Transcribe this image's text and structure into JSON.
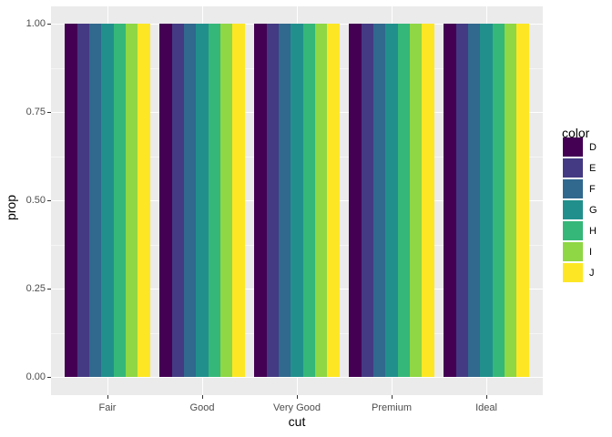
{
  "chart_data": {
    "type": "bar",
    "title": "",
    "xlabel": "cut",
    "ylabel": "prop",
    "categories": [
      "Fair",
      "Good",
      "Very Good",
      "Premium",
      "Ideal"
    ],
    "legend": {
      "title": "color",
      "position": "right",
      "entries": [
        "D",
        "E",
        "F",
        "G",
        "H",
        "I",
        "J"
      ]
    },
    "series": [
      {
        "name": "D",
        "color": "#440154",
        "values": [
          1,
          1,
          1,
          1,
          1
        ]
      },
      {
        "name": "E",
        "color": "#443A83",
        "values": [
          1,
          1,
          1,
          1,
          1
        ]
      },
      {
        "name": "F",
        "color": "#31688E",
        "values": [
          1,
          1,
          1,
          1,
          1
        ]
      },
      {
        "name": "G",
        "color": "#21908C",
        "values": [
          1,
          1,
          1,
          1,
          1
        ]
      },
      {
        "name": "H",
        "color": "#35B779",
        "values": [
          1,
          1,
          1,
          1,
          1
        ]
      },
      {
        "name": "I",
        "color": "#8FD744",
        "values": [
          1,
          1,
          1,
          1,
          1
        ]
      },
      {
        "name": "J",
        "color": "#FDE725",
        "values": [
          1,
          1,
          1,
          1,
          1
        ]
      }
    ],
    "yticks": [
      "0.00",
      "0.25",
      "0.50",
      "0.75",
      "1.00"
    ],
    "ylim": [
      0,
      1.05
    ],
    "grid": true,
    "position": "dodge"
  }
}
